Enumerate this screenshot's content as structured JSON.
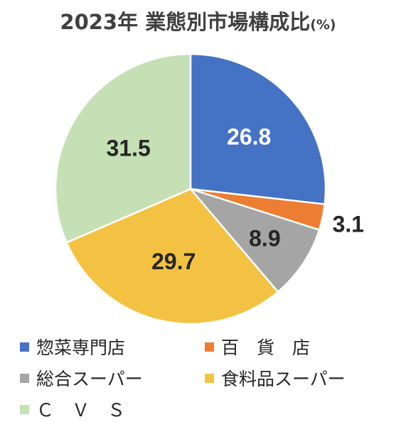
{
  "title": "2023年 業態別市場構成比",
  "title_unit": "(%)",
  "chart_data": {
    "type": "pie",
    "title": "2023年 業態別市場構成比(%)",
    "slices": [
      {
        "label": "惣菜専門店",
        "value": 26.8,
        "value_label": "26.8",
        "color": "#4472C4",
        "label_color": "#FFFFFF"
      },
      {
        "label": "百　貨　店",
        "value": 3.1,
        "value_label": "3.1",
        "color": "#ED7D31",
        "label_color": "#262626"
      },
      {
        "label": "総合スーパー",
        "value": 8.9,
        "value_label": "8.9",
        "color": "#A5A5A5",
        "label_color": "#262626"
      },
      {
        "label": "食料品スーパー",
        "value": 29.7,
        "value_label": "29.7",
        "color": "#F4C242",
        "label_color": "#262626"
      },
      {
        "label": "Ｃ　Ｖ　Ｓ",
        "value": 31.5,
        "value_label": "31.5",
        "color": "#C5E0B4",
        "label_color": "#262626"
      }
    ],
    "start_angle": "12 o'clock",
    "direction": "clockwise",
    "legend_position": "bottom"
  }
}
